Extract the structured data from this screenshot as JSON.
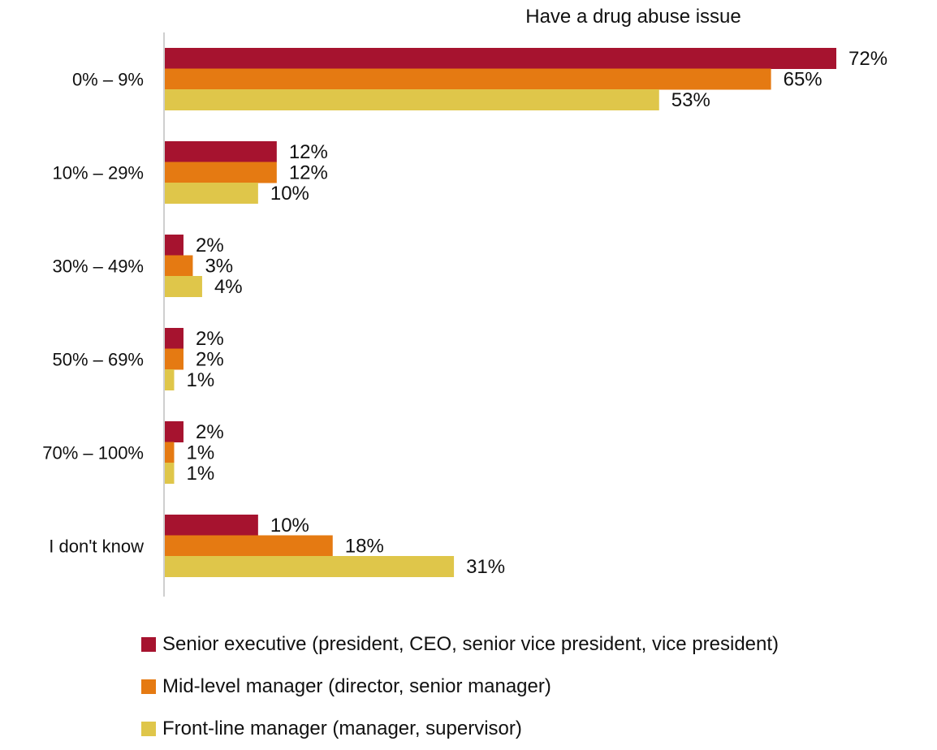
{
  "chart_data": {
    "type": "bar",
    "orientation": "horizontal",
    "title": "Have a drug abuse issue",
    "categories": [
      "0% – 9%",
      "10% – 29%",
      "30% – 49%",
      "50% – 69%",
      "70% – 100%",
      "I don't know"
    ],
    "series": [
      {
        "name": "Senior executive (president, CEO, senior vice president, vice president)",
        "color": "#A6132F",
        "values": [
          72,
          12,
          2,
          2,
          2,
          10
        ],
        "labels": [
          "72%",
          "12%",
          "2%",
          "2%",
          "2%",
          "10%"
        ]
      },
      {
        "name": "Mid-level manager (director, senior manager)",
        "color": "#E57A12",
        "values": [
          65,
          12,
          3,
          2,
          1,
          18
        ],
        "labels": [
          "65%",
          "12%",
          "3%",
          "2%",
          "1%",
          "18%"
        ]
      },
      {
        "name": "Front-line manager (manager, supervisor)",
        "color": "#DFC64A",
        "values": [
          53,
          10,
          4,
          1,
          1,
          31
        ],
        "labels": [
          "53%",
          "10%",
          "4%",
          "1%",
          "1%",
          "31%"
        ]
      }
    ],
    "xlim": [
      0,
      72
    ],
    "grid": false,
    "legend_position": "bottom"
  }
}
